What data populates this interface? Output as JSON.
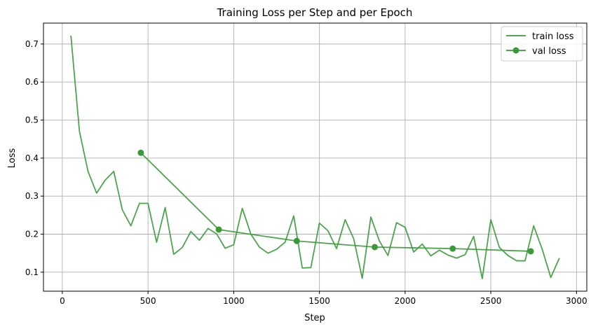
{
  "chart_data": {
    "type": "line",
    "title": "Training Loss per Step and per Epoch",
    "xlabel": "Step",
    "ylabel": "Loss",
    "xlim": [
      -110,
      3060
    ],
    "ylim": [
      0.05,
      0.755
    ],
    "xticks": [
      0,
      500,
      1000,
      1500,
      2000,
      2500,
      3000
    ],
    "yticks": [
      0.1,
      0.2,
      0.3,
      0.4,
      0.5,
      0.6,
      0.7
    ],
    "grid": true,
    "legend_position": "top-right",
    "colors": {
      "line": "#3a9a3a"
    },
    "series": [
      {
        "name": "train loss",
        "marker": "none",
        "x": [
          50,
          100,
          150,
          200,
          250,
          300,
          350,
          400,
          450,
          500,
          550,
          600,
          650,
          700,
          750,
          800,
          850,
          900,
          950,
          1000,
          1050,
          1100,
          1150,
          1200,
          1250,
          1300,
          1350,
          1400,
          1450,
          1500,
          1550,
          1600,
          1650,
          1700,
          1750,
          1800,
          1850,
          1900,
          1950,
          2000,
          2050,
          2100,
          2150,
          2200,
          2250,
          2300,
          2350,
          2400,
          2450,
          2500,
          2550,
          2600,
          2650,
          2700,
          2750,
          2800,
          2850,
          2900
        ],
        "values": [
          0.722,
          0.47,
          0.365,
          0.308,
          0.342,
          0.365,
          0.264,
          0.222,
          0.281,
          0.281,
          0.179,
          0.27,
          0.147,
          0.165,
          0.207,
          0.184,
          0.215,
          0.201,
          0.163,
          0.172,
          0.268,
          0.2,
          0.166,
          0.15,
          0.16,
          0.179,
          0.248,
          0.111,
          0.112,
          0.229,
          0.209,
          0.162,
          0.238,
          0.188,
          0.084,
          0.245,
          0.182,
          0.144,
          0.23,
          0.218,
          0.153,
          0.174,
          0.143,
          0.158,
          0.145,
          0.137,
          0.146,
          0.194,
          0.083,
          0.238,
          0.165,
          0.144,
          0.13,
          0.13,
          0.222,
          0.16,
          0.086,
          0.137
        ]
      },
      {
        "name": "val loss",
        "marker": "circle",
        "x": [
          458,
          913,
          1368,
          1823,
          2278,
          2733
        ],
        "values": [
          0.414,
          0.212,
          0.182,
          0.166,
          0.162,
          0.155
        ]
      }
    ]
  }
}
